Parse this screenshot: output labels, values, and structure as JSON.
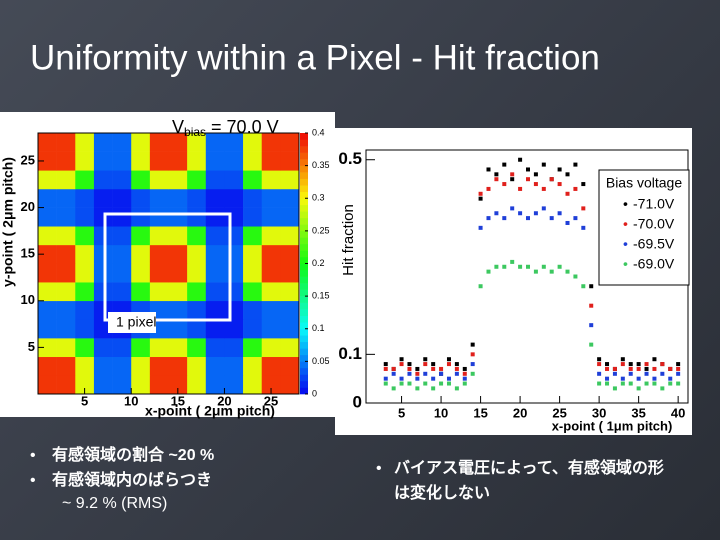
{
  "title": "Uniformity within a Pixel - Hit fraction",
  "chart_data": [
    {
      "type": "heatmap",
      "title": [
        "V",
        "bias",
        " = 70.0 V"
      ],
      "xlabel": "x-point ( 2μm pitch)",
      "ylabel": "y-point ( 2μm pitch)",
      "annotation": "1 pixel",
      "xlim": [
        0,
        28
      ],
      "ylim": [
        0,
        28
      ],
      "xticks": [
        5,
        10,
        15,
        20,
        25
      ],
      "yticks": [
        5,
        10,
        15,
        20,
        25
      ],
      "zlim": [
        0,
        0.4
      ],
      "zticks": [
        0,
        0.05,
        0.1,
        0.15,
        0.2,
        0.25,
        0.3,
        0.35,
        0.4
      ],
      "z": [
        [
          0.38,
          0.38,
          0.29,
          0.04,
          0.04,
          0.29,
          0.38,
          0.38,
          0.29,
          0.04,
          0.04,
          0.29,
          0.38,
          0.38
        ],
        [
          0.38,
          0.38,
          0.29,
          0.04,
          0.04,
          0.29,
          0.38,
          0.38,
          0.29,
          0.04,
          0.04,
          0.29,
          0.38,
          0.38
        ],
        [
          0.29,
          0.29,
          0.21,
          0.03,
          0.03,
          0.21,
          0.29,
          0.29,
          0.21,
          0.03,
          0.03,
          0.21,
          0.29,
          0.29
        ],
        [
          0.04,
          0.04,
          0.03,
          0.01,
          0.01,
          0.03,
          0.04,
          0.04,
          0.03,
          0.01,
          0.01,
          0.03,
          0.04,
          0.04
        ],
        [
          0.04,
          0.04,
          0.03,
          0.01,
          0.01,
          0.03,
          0.04,
          0.04,
          0.03,
          0.01,
          0.01,
          0.03,
          0.04,
          0.04
        ],
        [
          0.29,
          0.29,
          0.21,
          0.03,
          0.03,
          0.21,
          0.29,
          0.29,
          0.21,
          0.03,
          0.03,
          0.21,
          0.29,
          0.29
        ],
        [
          0.38,
          0.38,
          0.29,
          0.04,
          0.04,
          0.29,
          0.38,
          0.38,
          0.29,
          0.04,
          0.04,
          0.29,
          0.38,
          0.38
        ],
        [
          0.38,
          0.38,
          0.29,
          0.04,
          0.04,
          0.29,
          0.38,
          0.38,
          0.29,
          0.04,
          0.04,
          0.29,
          0.38,
          0.38
        ],
        [
          0.29,
          0.29,
          0.21,
          0.03,
          0.03,
          0.21,
          0.29,
          0.29,
          0.21,
          0.03,
          0.03,
          0.21,
          0.29,
          0.29
        ],
        [
          0.04,
          0.04,
          0.03,
          0.01,
          0.01,
          0.03,
          0.04,
          0.04,
          0.03,
          0.01,
          0.01,
          0.03,
          0.04,
          0.04
        ],
        [
          0.04,
          0.04,
          0.03,
          0.01,
          0.01,
          0.03,
          0.04,
          0.04,
          0.03,
          0.01,
          0.01,
          0.03,
          0.04,
          0.04
        ],
        [
          0.29,
          0.29,
          0.21,
          0.03,
          0.03,
          0.21,
          0.29,
          0.29,
          0.21,
          0.03,
          0.03,
          0.21,
          0.29,
          0.29
        ],
        [
          0.38,
          0.38,
          0.29,
          0.04,
          0.04,
          0.29,
          0.38,
          0.38,
          0.29,
          0.04,
          0.04,
          0.29,
          0.38,
          0.38
        ],
        [
          0.38,
          0.38,
          0.29,
          0.04,
          0.04,
          0.29,
          0.38,
          0.38,
          0.29,
          0.04,
          0.04,
          0.29,
          0.38,
          0.38
        ]
      ]
    },
    {
      "type": "scatter",
      "xlabel": "x-point ( 1μm pitch)",
      "ylabel": "Hit fraction",
      "legend_title": "Bias voltage",
      "legend": "upper right",
      "xlim": [
        0.5,
        41.5
      ],
      "ylim": [
        0,
        0.52
      ],
      "xticks": [
        5,
        10,
        15,
        20,
        25,
        30,
        35,
        40
      ],
      "yticks": [
        0,
        0.1,
        0.5
      ],
      "x": [
        3,
        4,
        5,
        6,
        7,
        8,
        9,
        10,
        11,
        12,
        13,
        14,
        15,
        16,
        17,
        18,
        19,
        20,
        21,
        22,
        23,
        24,
        25,
        26,
        27,
        28,
        29,
        30,
        31,
        32,
        33,
        34,
        35,
        36,
        37,
        38,
        39,
        40
      ],
      "series": [
        {
          "name": "-71.0V",
          "color": "#000000",
          "values": [
            0.08,
            0.07,
            0.09,
            0.08,
            0.07,
            0.09,
            0.08,
            0.06,
            0.09,
            0.08,
            0.07,
            0.12,
            0.42,
            0.48,
            0.47,
            0.49,
            0.46,
            0.5,
            0.48,
            0.47,
            0.49,
            0.46,
            0.48,
            0.47,
            0.49,
            0.45,
            0.24,
            0.09,
            0.08,
            0.07,
            0.09,
            0.08,
            0.08,
            0.07,
            0.09,
            0.08,
            0.07,
            0.08
          ]
        },
        {
          "name": "-70.0V",
          "color": "#e0201c",
          "values": [
            0.07,
            0.07,
            0.08,
            0.07,
            0.06,
            0.08,
            0.07,
            0.07,
            0.08,
            0.07,
            0.06,
            0.1,
            0.43,
            0.44,
            0.46,
            0.45,
            0.47,
            0.44,
            0.46,
            0.45,
            0.44,
            0.46,
            0.45,
            0.43,
            0.44,
            0.4,
            0.2,
            0.08,
            0.07,
            0.07,
            0.08,
            0.07,
            0.07,
            0.08,
            0.07,
            0.08,
            0.07,
            0.07
          ]
        },
        {
          "name": "-69.5V",
          "color": "#1f3fd8",
          "values": [
            0.05,
            0.06,
            0.05,
            0.06,
            0.05,
            0.06,
            0.05,
            0.06,
            0.05,
            0.06,
            0.05,
            0.08,
            0.36,
            0.38,
            0.39,
            0.38,
            0.4,
            0.39,
            0.38,
            0.39,
            0.4,
            0.38,
            0.39,
            0.37,
            0.38,
            0.36,
            0.16,
            0.06,
            0.05,
            0.06,
            0.05,
            0.06,
            0.05,
            0.06,
            0.05,
            0.06,
            0.05,
            0.06
          ]
        },
        {
          "name": "-69.0V",
          "color": "#3cc860",
          "values": [
            0.04,
            0.03,
            0.04,
            0.04,
            0.03,
            0.04,
            0.03,
            0.04,
            0.04,
            0.03,
            0.04,
            0.06,
            0.24,
            0.27,
            0.28,
            0.28,
            0.29,
            0.28,
            0.28,
            0.27,
            0.28,
            0.27,
            0.28,
            0.27,
            0.26,
            0.24,
            0.12,
            0.04,
            0.04,
            0.03,
            0.04,
            0.04,
            0.03,
            0.04,
            0.04,
            0.03,
            0.04,
            0.04
          ]
        }
      ]
    }
  ],
  "notes_left": {
    "items": [
      "有感領域の割合 ~20 %",
      "有感領域内のばらつき"
    ],
    "continuation": "~ 9.2 % (RMS)"
  },
  "notes_right": {
    "lines": [
      "バイアス電圧によって、有感領域の形",
      "は変化しない"
    ]
  }
}
